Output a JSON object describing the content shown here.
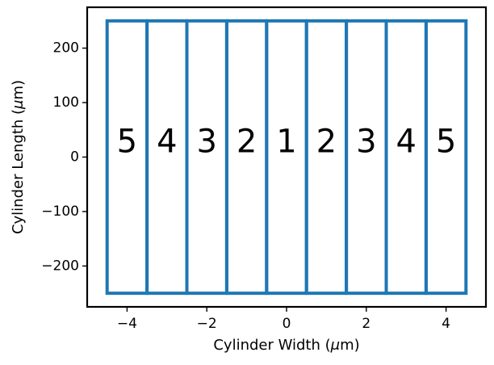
{
  "chart_data": {
    "type": "rectangle-grid",
    "title": "",
    "xlabel_text": "Cylinder Width (",
    "xlabel_unit": "m)",
    "ylabel_text": "Cylinder Length (",
    "ylabel_unit": "m)",
    "mu_symbol": "μ",
    "xlim": [
      -5.0,
      5.0
    ],
    "ylim": [
      -275,
      275
    ],
    "x_ticks": [
      -4,
      -2,
      0,
      2,
      4
    ],
    "x_tick_labels": [
      "−4",
      "−2",
      "0",
      "2",
      "4"
    ],
    "y_ticks": [
      200,
      100,
      0,
      -100,
      -200
    ],
    "y_tick_labels": [
      "200",
      "100",
      "0",
      "−100",
      "−200"
    ],
    "rect_y_range": [
      -250,
      250
    ],
    "label_y": 25,
    "rectangles": [
      {
        "x0": -4.5,
        "x1": -3.5,
        "label": "5"
      },
      {
        "x0": -3.5,
        "x1": -2.5,
        "label": "4"
      },
      {
        "x0": -2.5,
        "x1": -1.5,
        "label": "3"
      },
      {
        "x0": -1.5,
        "x1": -0.5,
        "label": "2"
      },
      {
        "x0": -0.5,
        "x1": 0.5,
        "label": "1"
      },
      {
        "x0": 0.5,
        "x1": 1.5,
        "label": "2"
      },
      {
        "x0": 1.5,
        "x1": 2.5,
        "label": "3"
      },
      {
        "x0": 2.5,
        "x1": 3.5,
        "label": "4"
      },
      {
        "x0": 3.5,
        "x1": 4.5,
        "label": "5"
      }
    ],
    "colors": {
      "rect_stroke": "#1f77b4",
      "axes": "#000000",
      "text": "#000000"
    }
  }
}
